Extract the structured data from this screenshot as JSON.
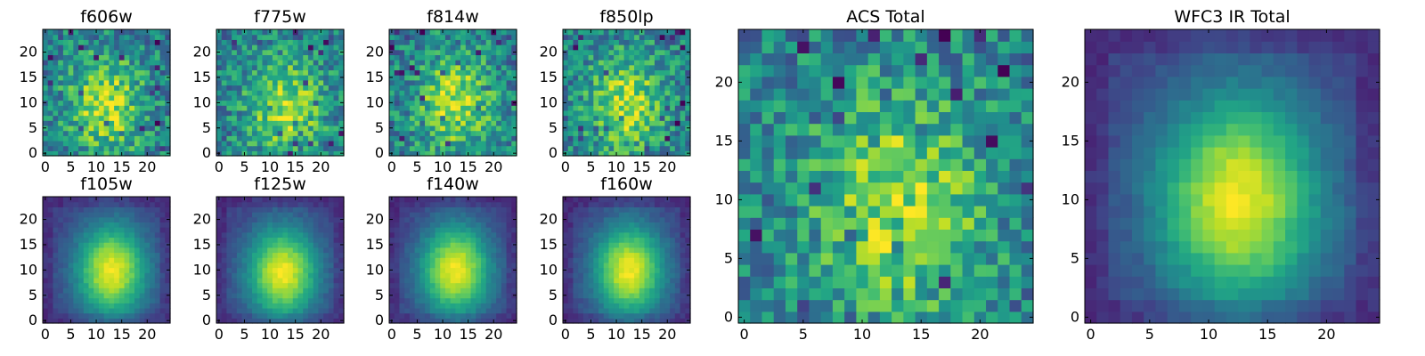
{
  "chart_data": {
    "type": "heatmap",
    "colormap": "viridis",
    "panels": [
      {
        "id": "f606w",
        "title": "f606w",
        "pattern": "noisy",
        "peak": [
          12,
          9.5
        ],
        "xticks": [
          0,
          5,
          10,
          15,
          20
        ],
        "yticks": [
          0,
          5,
          10,
          15,
          20
        ],
        "xlim": [
          0,
          24
        ],
        "ylim": [
          0,
          24
        ]
      },
      {
        "id": "f775w",
        "title": "f775w",
        "pattern": "noisy",
        "peak": [
          13,
          9.5
        ],
        "xticks": [
          0,
          5,
          10,
          15,
          20
        ],
        "yticks": [
          0,
          5,
          10,
          15,
          20
        ],
        "xlim": [
          0,
          24
        ],
        "ylim": [
          0,
          24
        ]
      },
      {
        "id": "f814w",
        "title": "f814w",
        "pattern": "noisy",
        "peak": [
          12.5,
          10
        ],
        "xticks": [
          0,
          5,
          10,
          15,
          20
        ],
        "yticks": [
          0,
          5,
          10,
          15,
          20
        ],
        "xlim": [
          0,
          24
        ],
        "ylim": [
          0,
          24
        ]
      },
      {
        "id": "f850lp",
        "title": "f850lp",
        "pattern": "noisy",
        "peak": [
          12,
          10
        ],
        "xticks": [
          0,
          5,
          10,
          15,
          20
        ],
        "yticks": [
          0,
          5,
          10,
          15,
          20
        ],
        "xlim": [
          0,
          24
        ],
        "ylim": [
          0,
          24
        ]
      },
      {
        "id": "f105w",
        "title": "f105w",
        "pattern": "smooth",
        "peak": [
          13,
          10
        ],
        "xticks": [
          0,
          5,
          10,
          15,
          20
        ],
        "yticks": [
          0,
          5,
          10,
          15,
          20
        ],
        "xlim": [
          0,
          24
        ],
        "ylim": [
          0,
          24
        ]
      },
      {
        "id": "f125w",
        "title": "f125w",
        "pattern": "smooth",
        "peak": [
          12.5,
          9.5
        ],
        "xticks": [
          0,
          5,
          10,
          15,
          20
        ],
        "yticks": [
          0,
          5,
          10,
          15,
          20
        ],
        "xlim": [
          0,
          24
        ],
        "ylim": [
          0,
          24
        ]
      },
      {
        "id": "f140w",
        "title": "f140w",
        "pattern": "smooth",
        "peak": [
          12.5,
          10
        ],
        "xticks": [
          0,
          5,
          10,
          15,
          20
        ],
        "yticks": [
          0,
          5,
          10,
          15,
          20
        ],
        "xlim": [
          0,
          24
        ],
        "ylim": [
          0,
          24
        ]
      },
      {
        "id": "f160w",
        "title": "f160w",
        "pattern": "smooth",
        "peak": [
          12.5,
          10
        ],
        "xticks": [
          0,
          5,
          10,
          15,
          20
        ],
        "yticks": [
          0,
          5,
          10,
          15,
          20
        ],
        "xlim": [
          0,
          24
        ],
        "ylim": [
          0,
          24
        ]
      },
      {
        "id": "acs-total",
        "title": "ACS Total",
        "pattern": "noisy",
        "peak": [
          13,
          10
        ],
        "xticks": [
          0,
          5,
          10,
          15,
          20
        ],
        "yticks": [
          0,
          5,
          10,
          15,
          20
        ],
        "xlim": [
          0,
          24
        ],
        "ylim": [
          0,
          24
        ]
      },
      {
        "id": "wfc3-ir-total",
        "title": "WFC3 IR Total",
        "pattern": "smooth",
        "peak": [
          12.5,
          10
        ],
        "xticks": [
          0,
          5,
          10,
          15,
          20
        ],
        "yticks": [
          0,
          5,
          10,
          15,
          20
        ],
        "xlim": [
          0,
          24
        ],
        "ylim": [
          0,
          24
        ]
      }
    ]
  }
}
